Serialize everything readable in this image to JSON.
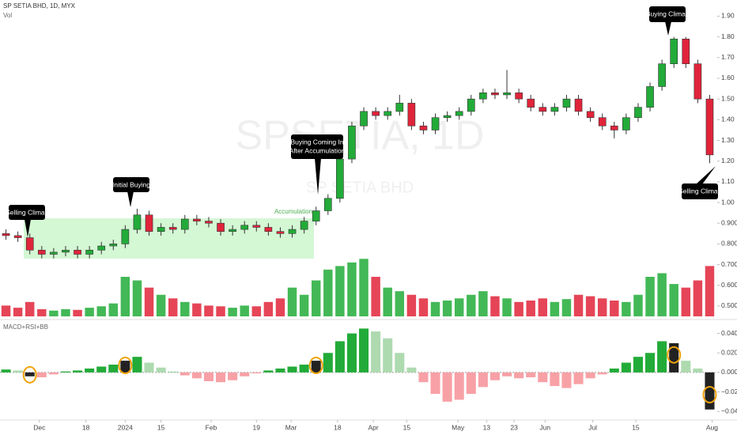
{
  "chart_data": {
    "type": "candlestick",
    "title": "SP SETIA BHD, 1D, MYX",
    "watermark": "SPSETIA, 1D",
    "watermark_subtitle": "SP SETIA BHD",
    "open": [
      0.85,
      0.84,
      0.83,
      0.77,
      0.75,
      0.76,
      0.77,
      0.75,
      0.77,
      0.79,
      0.8,
      0.87,
      0.94,
      0.86,
      0.88,
      0.87,
      0.92,
      0.91,
      0.9,
      0.86,
      0.87,
      0.89,
      0.88,
      0.86,
      0.85,
      0.87,
      0.91,
      0.96,
      1.02,
      1.21,
      1.37,
      1.44,
      1.42,
      1.44,
      1.48,
      1.37,
      1.35,
      1.41,
      1.42,
      1.44,
      1.5,
      1.53,
      1.52,
      1.53,
      1.5,
      1.46,
      1.44,
      1.46,
      1.5,
      1.44,
      1.41,
      1.37,
      1.35,
      1.41,
      1.46,
      1.56,
      1.67,
      1.79,
      1.67,
      1.5
    ],
    "high": [
      0.87,
      0.86,
      0.85,
      0.79,
      0.78,
      0.79,
      0.79,
      0.79,
      0.81,
      0.82,
      0.89,
      0.97,
      0.96,
      0.9,
      0.9,
      0.94,
      0.94,
      0.93,
      0.92,
      0.89,
      0.91,
      0.91,
      0.9,
      0.88,
      0.89,
      0.93,
      0.98,
      1.04,
      1.23,
      1.39,
      1.46,
      1.46,
      1.46,
      1.52,
      1.5,
      1.39,
      1.43,
      1.44,
      1.46,
      1.52,
      1.55,
      1.55,
      1.64,
      1.55,
      1.52,
      1.48,
      1.48,
      1.52,
      1.52,
      1.46,
      1.43,
      1.39,
      1.43,
      1.48,
      1.58,
      1.69,
      1.8,
      1.8,
      1.69,
      1.52
    ],
    "low": [
      0.82,
      0.81,
      0.75,
      0.73,
      0.73,
      0.74,
      0.73,
      0.73,
      0.75,
      0.77,
      0.78,
      0.85,
      0.84,
      0.84,
      0.85,
      0.85,
      0.89,
      0.88,
      0.84,
      0.84,
      0.85,
      0.86,
      0.84,
      0.83,
      0.83,
      0.85,
      0.89,
      0.94,
      1.0,
      1.19,
      1.35,
      1.4,
      1.4,
      1.42,
      1.35,
      1.33,
      1.33,
      1.39,
      1.4,
      1.42,
      1.48,
      1.5,
      1.5,
      1.48,
      1.44,
      1.42,
      1.42,
      1.44,
      1.42,
      1.39,
      1.35,
      1.31,
      1.33,
      1.39,
      1.44,
      1.54,
      1.65,
      1.65,
      1.48,
      1.19
    ],
    "close": [
      0.84,
      0.83,
      0.77,
      0.75,
      0.76,
      0.77,
      0.75,
      0.77,
      0.79,
      0.8,
      0.87,
      0.94,
      0.86,
      0.88,
      0.87,
      0.92,
      0.91,
      0.9,
      0.86,
      0.87,
      0.89,
      0.88,
      0.86,
      0.85,
      0.87,
      0.91,
      0.96,
      1.02,
      1.21,
      1.37,
      1.44,
      1.42,
      1.44,
      1.48,
      1.37,
      1.35,
      1.41,
      1.42,
      1.44,
      1.5,
      1.53,
      1.52,
      1.53,
      1.5,
      1.46,
      1.44,
      1.46,
      1.5,
      1.44,
      1.41,
      1.37,
      1.35,
      1.41,
      1.46,
      1.56,
      1.67,
      1.79,
      1.67,
      1.5,
      1.23
    ],
    "up_color": "#22ab38",
    "down_color": "#e0243a",
    "ylim": [
      0.45,
      1.94
    ],
    "yticks": [
      {
        "value": 1.9,
        "label": "1.90"
      },
      {
        "value": 1.8,
        "label": "1.80"
      },
      {
        "value": 1.7,
        "label": "1.70"
      },
      {
        "value": 1.6,
        "label": "1.60"
      },
      {
        "value": 1.5,
        "label": "1.50"
      },
      {
        "value": 1.4,
        "label": "1.40"
      },
      {
        "value": 1.3,
        "label": "1.30"
      },
      {
        "value": 1.2,
        "label": "1.20"
      },
      {
        "value": 1.1,
        "label": "1.10"
      },
      {
        "value": 1.0,
        "label": "1.00"
      },
      {
        "value": 0.9,
        "label": "0.900"
      },
      {
        "value": 0.8,
        "label": "0.800"
      },
      {
        "value": 0.7,
        "label": "0.700"
      },
      {
        "value": 0.6,
        "label": "0.600"
      },
      {
        "value": 0.5,
        "label": "0.500"
      }
    ],
    "xlim": [
      -0.5,
      59.5
    ],
    "xticks": [
      {
        "value": 2.8,
        "label": "Dec"
      },
      {
        "value": 6.7,
        "label": "18"
      },
      {
        "value": 10,
        "label": "2024"
      },
      {
        "value": 13,
        "label": "15"
      },
      {
        "value": 17.2,
        "label": "Feb"
      },
      {
        "value": 21,
        "label": "19"
      },
      {
        "value": 23.9,
        "label": "Mar"
      },
      {
        "value": 27.8,
        "label": "18"
      },
      {
        "value": 30.8,
        "label": "Apr"
      },
      {
        "value": 33.6,
        "label": "15"
      },
      {
        "value": 37.9,
        "label": "May"
      },
      {
        "value": 40.3,
        "label": "13"
      },
      {
        "value": 42.6,
        "label": "23"
      },
      {
        "value": 45.2,
        "label": "Jun"
      },
      {
        "value": 49.2,
        "label": "Jul"
      },
      {
        "value": 52.8,
        "label": "15"
      },
      {
        "value": 59.2,
        "label": "Aug"
      }
    ],
    "volume": {
      "name": "Vol",
      "vlim": [
        0,
        110
      ],
      "values": [
        15,
        12,
        20,
        10,
        8,
        10,
        9,
        12,
        14,
        18,
        55,
        50,
        40,
        30,
        25,
        20,
        18,
        15,
        14,
        12,
        15,
        14,
        20,
        25,
        40,
        30,
        50,
        65,
        70,
        75,
        80,
        55,
        40,
        35,
        30,
        25,
        20,
        22,
        25,
        30,
        35,
        28,
        25,
        20,
        22,
        25,
        20,
        24,
        30,
        28,
        25,
        22,
        20,
        30,
        55,
        60,
        45,
        40,
        50,
        70
      ]
    },
    "macd": {
      "name": "MACD+RSI+BB",
      "ylim": [
        -0.052,
        0.051
      ],
      "yticks": [
        {
          "value": 0.04,
          "label": "0.040"
        },
        {
          "value": 0.02,
          "label": "0.020"
        },
        {
          "value": 0,
          "label": "0.000"
        },
        {
          "value": -0.02,
          "label": "−0.020"
        },
        {
          "value": -0.04,
          "label": "−0.040"
        }
      ],
      "values": [
        0.003,
        0.002,
        -0.004,
        -0.005,
        -0.002,
        0.001,
        0.002,
        0.004,
        0.006,
        0.008,
        0.012,
        0.016,
        0.01,
        0.005,
        0.001,
        -0.003,
        -0.006,
        -0.009,
        -0.01,
        -0.008,
        -0.004,
        -0.001,
        0.002,
        0.004,
        0.006,
        0.008,
        0.012,
        0.02,
        0.032,
        0.04,
        0.045,
        0.042,
        0.035,
        0.02,
        0.005,
        -0.01,
        -0.022,
        -0.03,
        -0.028,
        -0.022,
        -0.015,
        -0.008,
        -0.004,
        -0.006,
        -0.005,
        -0.01,
        -0.014,
        -0.016,
        -0.012,
        -0.006,
        -0.002,
        0.004,
        0.01,
        0.016,
        0.02,
        0.032,
        0.03,
        0.012,
        0.004,
        -0.038
      ],
      "rising_color": "#22ab38",
      "falling_color": "#a5d6a7",
      "negative_color": "#f7a1a6",
      "highlight_color": "#222222",
      "circle_color": "#f0a30a",
      "highlight": [
        2,
        10,
        26,
        56,
        59
      ]
    },
    "zone_label": "Accumulation",
    "annotations": [
      [
        "Selling Climax"
      ],
      [
        "Initial Buying"
      ],
      [
        "Buying Coming In",
        "(After Accumulation)"
      ],
      [
        "Buying Climax"
      ],
      [
        "Selling Climax"
      ]
    ]
  }
}
